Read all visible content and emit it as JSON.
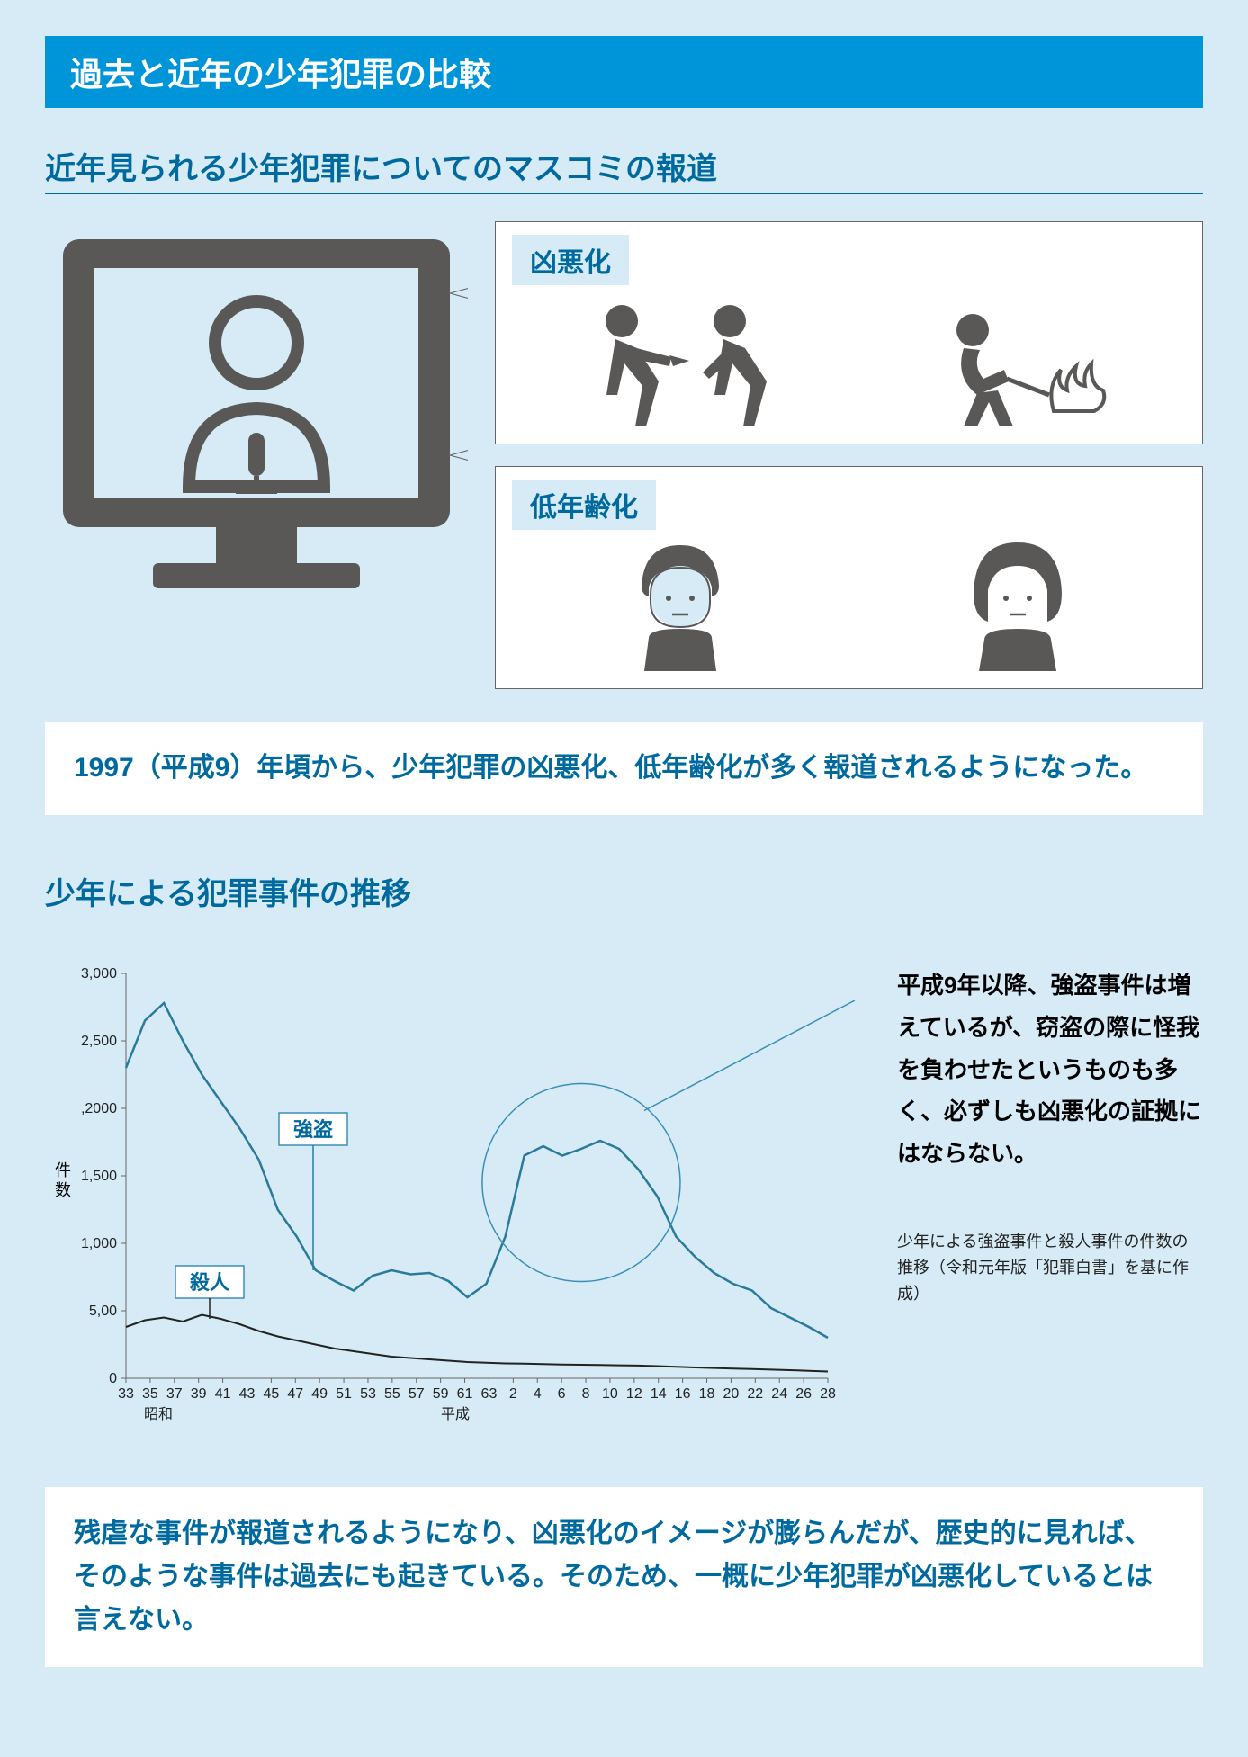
{
  "banner": "過去と近年の少年犯罪の比較",
  "section1": {
    "title": "近年見られる少年犯罪についてのマスコミの報道",
    "bubble1_title": "凶悪化",
    "bubble2_title": "低年齢化",
    "highlight": "1997（平成9）年頃から、少年犯罪の凶悪化、低年齢化が多く報道されるようになった。"
  },
  "section2": {
    "title": "少年による犯罪事件の推移",
    "y_label": "件数",
    "y_ticks": [
      "0",
      "5,00",
      "1,000",
      "1,500",
      ",2000",
      "2,500",
      "3,000"
    ],
    "y_max": 3000,
    "y_step": 500,
    "x_ticks": [
      "33",
      "35",
      "37",
      "39",
      "41",
      "43",
      "45",
      "47",
      "49",
      "51",
      "53",
      "55",
      "57",
      "59",
      "61",
      "63",
      "2",
      "4",
      "6",
      "8",
      "10",
      "12",
      "14",
      "16",
      "18",
      "20",
      "22",
      "24",
      "26",
      "28"
    ],
    "era_labels": {
      "showa": "昭和",
      "heisei": "平成"
    },
    "series": {
      "robbery": {
        "label": "強盗",
        "color": "#2a7a9b",
        "width": 2.5,
        "data": [
          2300,
          2650,
          2780,
          2500,
          2250,
          2050,
          1850,
          1620,
          1250,
          1050,
          800,
          720,
          650,
          760,
          800,
          770,
          780,
          720,
          600,
          700,
          1050,
          1650,
          1720,
          1650,
          1700,
          1760,
          1700,
          1550,
          1350,
          1050,
          900,
          780,
          700,
          650,
          520,
          450,
          380,
          300
        ]
      },
      "murder": {
        "label": "殺人",
        "color": "#222222",
        "width": 2,
        "data": [
          380,
          430,
          450,
          420,
          470,
          440,
          400,
          350,
          310,
          280,
          250,
          220,
          200,
          180,
          160,
          150,
          140,
          130,
          120,
          115,
          110,
          108,
          105,
          102,
          100,
          98,
          96,
          94,
          90,
          85,
          80,
          76,
          72,
          68,
          64,
          60,
          55,
          50
        ]
      }
    },
    "circle_note_line_color": "#3a8fb7",
    "annotation": "平成9年以降、強盗事件は増えているが、窃盗の際に怪我を負わせたというものも多く、必ずしも凶悪化の証拠にはならない。",
    "source": "少年による強盗事件と殺人事件の件数の推移（令和元年版「犯罪白書」を基に作成）",
    "conclusion": "残虐な事件が報道されるようになり、凶悪化のイメージが膨らんだが、歴史的に見れば、そのような事件は過去にも起きている。そのため、一概に少年犯罪が凶悪化しているとは言えない。"
  },
  "colors": {
    "bg": "#d6ebf5",
    "banner": "#0095d9",
    "heading": "#006a9f",
    "icon": "#595857"
  }
}
